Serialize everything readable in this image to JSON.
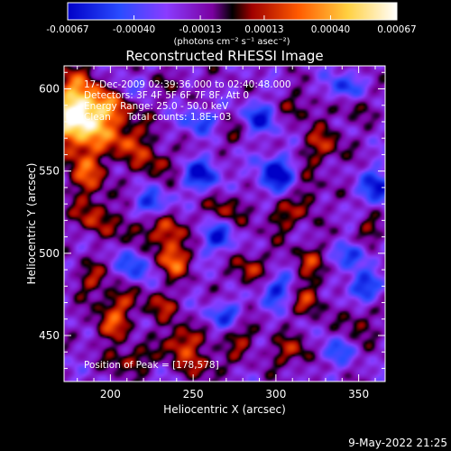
{
  "chart_data": {
    "type": "heatmap",
    "title": "Reconstructed RHESSI Image",
    "xlabel": "Heliocentric X (arcsec)",
    "ylabel": "Heliocentric Y (arcsec)",
    "xlim": [
      172,
      366
    ],
    "ylim": [
      422,
      614
    ],
    "x_ticks": [
      200,
      250,
      300,
      350
    ],
    "y_ticks": [
      450,
      500,
      550,
      600
    ],
    "colorbar": {
      "label": "(photons cm⁻² s⁻¹ asec⁻²)",
      "range": [
        -0.00067,
        0.00067
      ],
      "tick_values": [
        -0.00067,
        -0.0004,
        -0.00013,
        0.00013,
        0.0004,
        0.00067
      ],
      "tick_labels": [
        "-0.00067",
        "-0.00040",
        "-0.00013",
        "0.00013",
        "0.00040",
        "0.00067"
      ]
    },
    "annotations": {
      "time_range": "17-Dec-2009 02:39:36.000 to 02:40:48.000",
      "detectors": "Detectors: 3F 4F 5F 6F 7F 8F, Att 0",
      "energy_range": "Energy Range: 25.0 - 50.0 keV",
      "algorithm": "Clean",
      "total_counts": "Total counts: 1.8E+03",
      "peak": "Position of Peak = [178,578]"
    },
    "peak_position": [
      178,
      578
    ],
    "sources": [
      {
        "x": 180,
        "y": 578,
        "value": 0.00067,
        "sx": 12,
        "sy": 12
      },
      {
        "x": 195,
        "y": 590,
        "value": 0.00045,
        "sx": 14,
        "sy": 10
      },
      {
        "x": 176,
        "y": 600,
        "value": 0.0003,
        "sx": 8,
        "sy": 12
      },
      {
        "x": 210,
        "y": 568,
        "value": 0.00034,
        "sx": 10,
        "sy": 8
      },
      {
        "x": 228,
        "y": 555,
        "value": 0.00025,
        "sx": 9,
        "sy": 7
      },
      {
        "x": 186,
        "y": 548,
        "value": 0.00035,
        "sx": 9,
        "sy": 10
      },
      {
        "x": 190,
        "y": 522,
        "value": 0.00032,
        "sx": 8,
        "sy": 8
      },
      {
        "x": 214,
        "y": 515,
        "value": 0.00025,
        "sx": 7,
        "sy": 7
      },
      {
        "x": 235,
        "y": 512,
        "value": 0.00038,
        "sx": 7,
        "sy": 9
      },
      {
        "x": 238,
        "y": 495,
        "value": 0.00042,
        "sx": 7,
        "sy": 7
      },
      {
        "x": 188,
        "y": 484,
        "value": 0.00025,
        "sx": 8,
        "sy": 7
      },
      {
        "x": 205,
        "y": 470,
        "value": 0.0003,
        "sx": 8,
        "sy": 7
      },
      {
        "x": 200,
        "y": 455,
        "value": 0.00032,
        "sx": 8,
        "sy": 7
      },
      {
        "x": 230,
        "y": 468,
        "value": 0.00025,
        "sx": 8,
        "sy": 7
      },
      {
        "x": 243,
        "y": 445,
        "value": 0.0004,
        "sx": 8,
        "sy": 8
      },
      {
        "x": 212,
        "y": 435,
        "value": 0.0003,
        "sx": 9,
        "sy": 6
      },
      {
        "x": 258,
        "y": 432,
        "value": 0.00025,
        "sx": 9,
        "sy": 6
      },
      {
        "x": 278,
        "y": 450,
        "value": 0.00025,
        "sx": 8,
        "sy": 8
      },
      {
        "x": 285,
        "y": 490,
        "value": 0.0003,
        "sx": 8,
        "sy": 8
      },
      {
        "x": 270,
        "y": 527,
        "value": 0.00027,
        "sx": 8,
        "sy": 7
      },
      {
        "x": 303,
        "y": 522,
        "value": 0.00025,
        "sx": 8,
        "sy": 8
      },
      {
        "x": 320,
        "y": 535,
        "value": 0.00022,
        "sx": 6,
        "sy": 10
      },
      {
        "x": 328,
        "y": 565,
        "value": 0.0003,
        "sx": 9,
        "sy": 8
      },
      {
        "x": 315,
        "y": 590,
        "value": 0.0002,
        "sx": 10,
        "sy": 7
      },
      {
        "x": 272,
        "y": 575,
        "value": 0.00015,
        "sx": 10,
        "sy": 8
      },
      {
        "x": 320,
        "y": 495,
        "value": 0.00026,
        "sx": 7,
        "sy": 8
      },
      {
        "x": 320,
        "y": 472,
        "value": 0.0003,
        "sx": 7,
        "sy": 8
      },
      {
        "x": 310,
        "y": 440,
        "value": 0.00028,
        "sx": 10,
        "sy": 7
      },
      {
        "x": 350,
        "y": 460,
        "value": 0.00024,
        "sx": 7,
        "sy": 10
      },
      {
        "x": 356,
        "y": 512,
        "value": 0.00024,
        "sx": 7,
        "sy": 8
      },
      {
        "x": 345,
        "y": 590,
        "value": 0.00018,
        "sx": 8,
        "sy": 8
      },
      {
        "x": 240,
        "y": 605,
        "value": 0.0001,
        "sx": 12,
        "sy": 6
      },
      {
        "x": 225,
        "y": 530,
        "value": -0.0004,
        "sx": 7,
        "sy": 6
      },
      {
        "x": 255,
        "y": 548,
        "value": -0.00045,
        "sx": 8,
        "sy": 7
      },
      {
        "x": 265,
        "y": 510,
        "value": -0.0004,
        "sx": 7,
        "sy": 7
      },
      {
        "x": 300,
        "y": 548,
        "value": -0.0005,
        "sx": 8,
        "sy": 8
      },
      {
        "x": 290,
        "y": 582,
        "value": -0.0004,
        "sx": 8,
        "sy": 7
      },
      {
        "x": 340,
        "y": 600,
        "value": -0.0004,
        "sx": 8,
        "sy": 6
      },
      {
        "x": 362,
        "y": 540,
        "value": -0.00045,
        "sx": 7,
        "sy": 8
      },
      {
        "x": 348,
        "y": 500,
        "value": -0.0004,
        "sx": 7,
        "sy": 6
      },
      {
        "x": 352,
        "y": 478,
        "value": -0.00045,
        "sx": 7,
        "sy": 7
      },
      {
        "x": 300,
        "y": 478,
        "value": -0.0004,
        "sx": 7,
        "sy": 7
      },
      {
        "x": 270,
        "y": 462,
        "value": -0.00035,
        "sx": 8,
        "sy": 6
      },
      {
        "x": 215,
        "y": 492,
        "value": -0.00035,
        "sx": 7,
        "sy": 7
      },
      {
        "x": 255,
        "y": 580,
        "value": -0.00035,
        "sx": 8,
        "sy": 6
      },
      {
        "x": 335,
        "y": 440,
        "value": -0.0003,
        "sx": 8,
        "sy": 6
      },
      {
        "x": 210,
        "y": 600,
        "value": -0.00025,
        "sx": 8,
        "sy": 6
      }
    ]
  },
  "footer_timestamp": "9-May-2022 21:25"
}
